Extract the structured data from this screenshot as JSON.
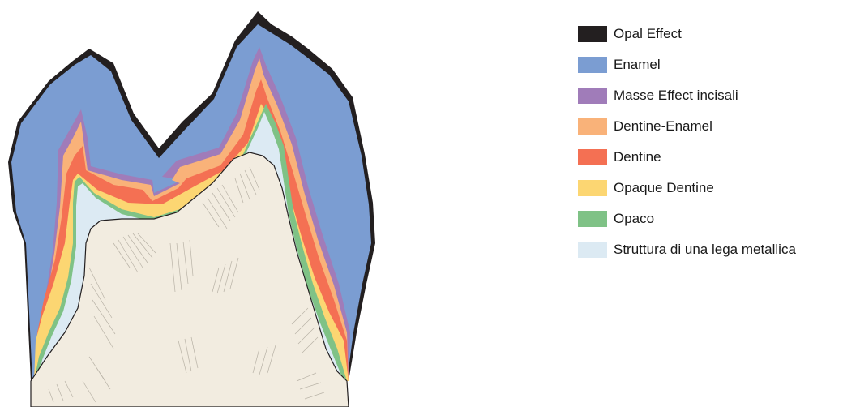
{
  "colors": {
    "opal_effect": "#231f20",
    "enamel": "#7b9dd2",
    "masse_effect_incisali": "#a07cb9",
    "dentine_enamel": "#f9b279",
    "dentine": "#f47053",
    "opaque_dentine": "#fcd672",
    "opaco": "#7fc286",
    "struttura_lega": "#dceaf3",
    "core": "#f2ece0"
  },
  "legend": [
    {
      "label": "Opal Effect",
      "color": "#231f20",
      "icon": "opal-effect-swatch"
    },
    {
      "label": "Enamel",
      "color": "#7b9dd2",
      "icon": "enamel-swatch"
    },
    {
      "label": "Masse Effect incisali",
      "color": "#a07cb9",
      "icon": "masse-effect-swatch"
    },
    {
      "label": "Dentine-Enamel",
      "color": "#f9b279",
      "icon": "dentine-enamel-swatch"
    },
    {
      "label": "Dentine",
      "color": "#f47053",
      "icon": "dentine-swatch"
    },
    {
      "label": "Opaque Dentine",
      "color": "#fcd672",
      "icon": "opaque-dentine-swatch"
    },
    {
      "label": "Opaco",
      "color": "#7fc286",
      "icon": "opaco-swatch"
    },
    {
      "label": "Struttura di una lega metallica",
      "color": "#dceaf3",
      "icon": "struttura-swatch"
    }
  ]
}
